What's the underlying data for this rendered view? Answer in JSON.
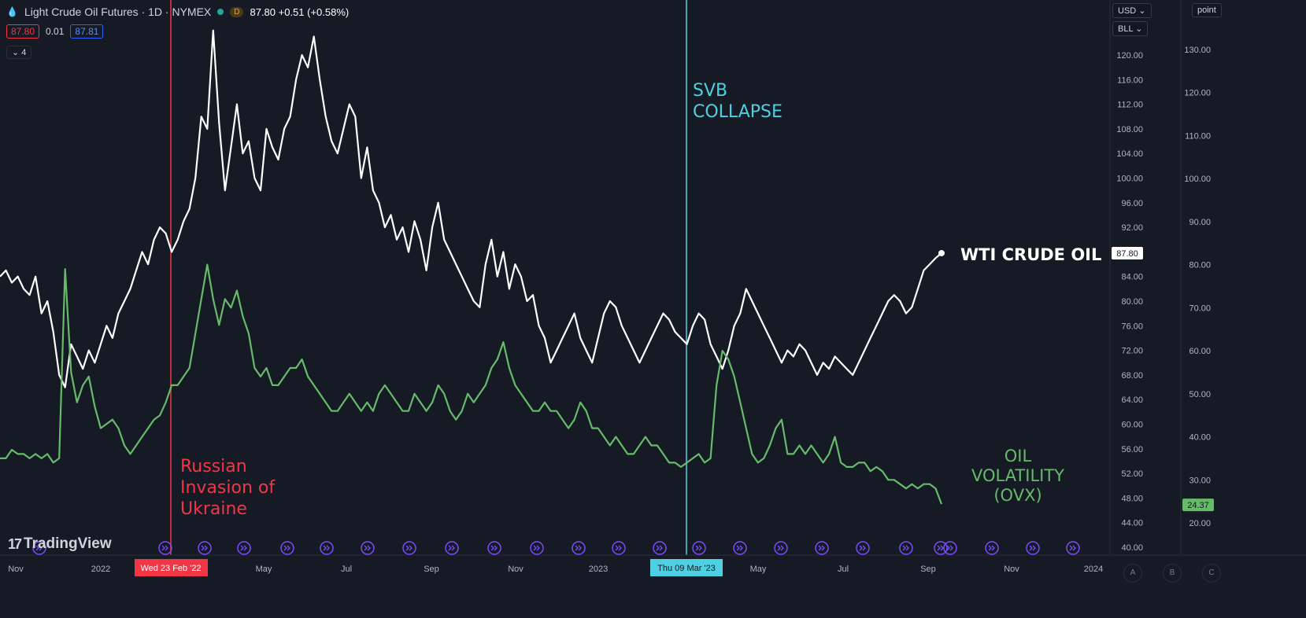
{
  "header": {
    "title": "Light Crude Oil Futures · 1D · NYMEX",
    "badge": "D",
    "price": "87.80 +0.51 (+0.58%)",
    "bid": "87.80",
    "spread": "0.01",
    "ask": "87.81",
    "indicators_toggle": "4"
  },
  "controls": {
    "currency": "USD",
    "unit": "BLL",
    "scale_mode": "point"
  },
  "logo": {
    "text": "TradingView"
  },
  "scale_buttons": [
    "A",
    "B",
    "C"
  ],
  "colors": {
    "background": "#161a25",
    "oil_line": "#ffffff",
    "ovx_line": "#66bb6a",
    "invasion_line": "#f23645",
    "svb_line": "#4dd0e1",
    "events_marker": "#7c4dff"
  },
  "chart_data": {
    "type": "line",
    "xlabels": [
      "Nov",
      "2022",
      "May",
      "Jul",
      "Sep",
      "Nov",
      "2023",
      "May",
      "Jul",
      "Sep",
      "Nov",
      "2024"
    ],
    "date_range": [
      "2021-10",
      "2023-09"
    ],
    "annotations": [
      {
        "text": [
          "Russian",
          "Invasion of",
          "Ukraine"
        ],
        "date_label": "Wed 23 Feb '22",
        "color": "#f23645"
      },
      {
        "text": [
          "SVB",
          "COLLAPSE"
        ],
        "date_label": "Thu 09 Mar '23",
        "color": "#4dd0e1"
      }
    ],
    "series": [
      {
        "name": "WTI CRUDE OIL",
        "axis": "left",
        "last_value": "87.80",
        "ylim": [
          40,
          130
        ],
        "ticks": [
          "120.00",
          "116.00",
          "112.00",
          "108.00",
          "104.00",
          "100.00",
          "96.00",
          "92.00",
          "88.00",
          "84.00",
          "80.00",
          "76.00",
          "72.00",
          "68.00",
          "64.00",
          "60.00",
          "56.00",
          "52.00",
          "48.00",
          "44.00",
          "40.00"
        ],
        "values": [
          84,
          85,
          83,
          84,
          82,
          81,
          84,
          78,
          80,
          75,
          68,
          66,
          73,
          71,
          69,
          72,
          70,
          73,
          76,
          74,
          78,
          80,
          82,
          85,
          88,
          86,
          90,
          92,
          91,
          88,
          90,
          93,
          95,
          100,
          110,
          108,
          124,
          109,
          98,
          105,
          112,
          104,
          106,
          100,
          98,
          108,
          105,
          103,
          108,
          110,
          116,
          120,
          118,
          123,
          116,
          110,
          106,
          104,
          108,
          112,
          110,
          100,
          105,
          98,
          96,
          92,
          94,
          90,
          92,
          88,
          93,
          90,
          85,
          92,
          96,
          90,
          88,
          86,
          84,
          82,
          80,
          79,
          86,
          90,
          84,
          88,
          82,
          86,
          84,
          80,
          81,
          76,
          74,
          70,
          72,
          74,
          76,
          78,
          74,
          72,
          70,
          74,
          78,
          80,
          79,
          76,
          74,
          72,
          70,
          72,
          74,
          76,
          78,
          77,
          75,
          74,
          73,
          76,
          78,
          77,
          73,
          71,
          69,
          72,
          76,
          78,
          82,
          80,
          78,
          76,
          74,
          72,
          70,
          72,
          71,
          73,
          72,
          70,
          68,
          70,
          69,
          71,
          70,
          69,
          68,
          70,
          72,
          74,
          76,
          78,
          80,
          81,
          80,
          78,
          79,
          82,
          85,
          86,
          87,
          87.8
        ],
        "tick_values": [
          120,
          116,
          112,
          108,
          104,
          100,
          96,
          92,
          88,
          84,
          80,
          76,
          72,
          68,
          64,
          60,
          56,
          52,
          48,
          44,
          40
        ]
      },
      {
        "name": "OIL VOLATILITY (OVX)",
        "label_lines": [
          "OIL",
          "VOLATILITY",
          "(OVX)"
        ],
        "axis": "right",
        "last_value": "24.37",
        "ylim": [
          17,
          135
        ],
        "ticks": [
          "130.00",
          "120.00",
          "110.00",
          "100.00",
          "90.00",
          "80.00",
          "70.00",
          "60.00",
          "50.00",
          "40.00",
          "30.00",
          "20.00"
        ],
        "values": [
          35,
          35,
          37,
          36,
          36,
          35,
          36,
          35,
          36,
          34,
          35,
          79,
          55,
          48,
          52,
          54,
          47,
          42,
          43,
          44,
          42,
          38,
          36,
          38,
          40,
          42,
          44,
          45,
          48,
          52,
          52,
          54,
          56,
          64,
          72,
          80,
          72,
          66,
          72,
          70,
          74,
          68,
          64,
          56,
          54,
          56,
          52,
          52,
          54,
          56,
          56,
          58,
          54,
          52,
          50,
          48,
          46,
          46,
          48,
          50,
          48,
          46,
          48,
          46,
          50,
          52,
          50,
          48,
          46,
          46,
          50,
          48,
          46,
          48,
          52,
          50,
          46,
          44,
          46,
          50,
          48,
          50,
          52,
          56,
          58,
          62,
          56,
          52,
          50,
          48,
          46,
          46,
          48,
          46,
          46,
          44,
          42,
          44,
          48,
          46,
          42,
          42,
          40,
          38,
          40,
          38,
          36,
          36,
          38,
          40,
          38,
          38,
          36,
          34,
          34,
          33,
          34,
          35,
          36,
          34,
          35,
          52,
          60,
          58,
          54,
          48,
          42,
          36,
          34,
          35,
          38,
          42,
          44,
          36,
          36,
          38,
          36,
          38,
          36,
          34,
          36,
          40,
          34,
          33,
          33,
          34,
          34,
          32,
          33,
          32,
          30,
          30,
          29,
          28,
          29,
          28,
          29,
          29,
          28,
          24.37
        ],
        "tick_values": [
          130,
          120,
          110,
          100,
          90,
          80,
          70,
          60,
          50,
          40,
          30,
          20
        ]
      }
    ]
  }
}
